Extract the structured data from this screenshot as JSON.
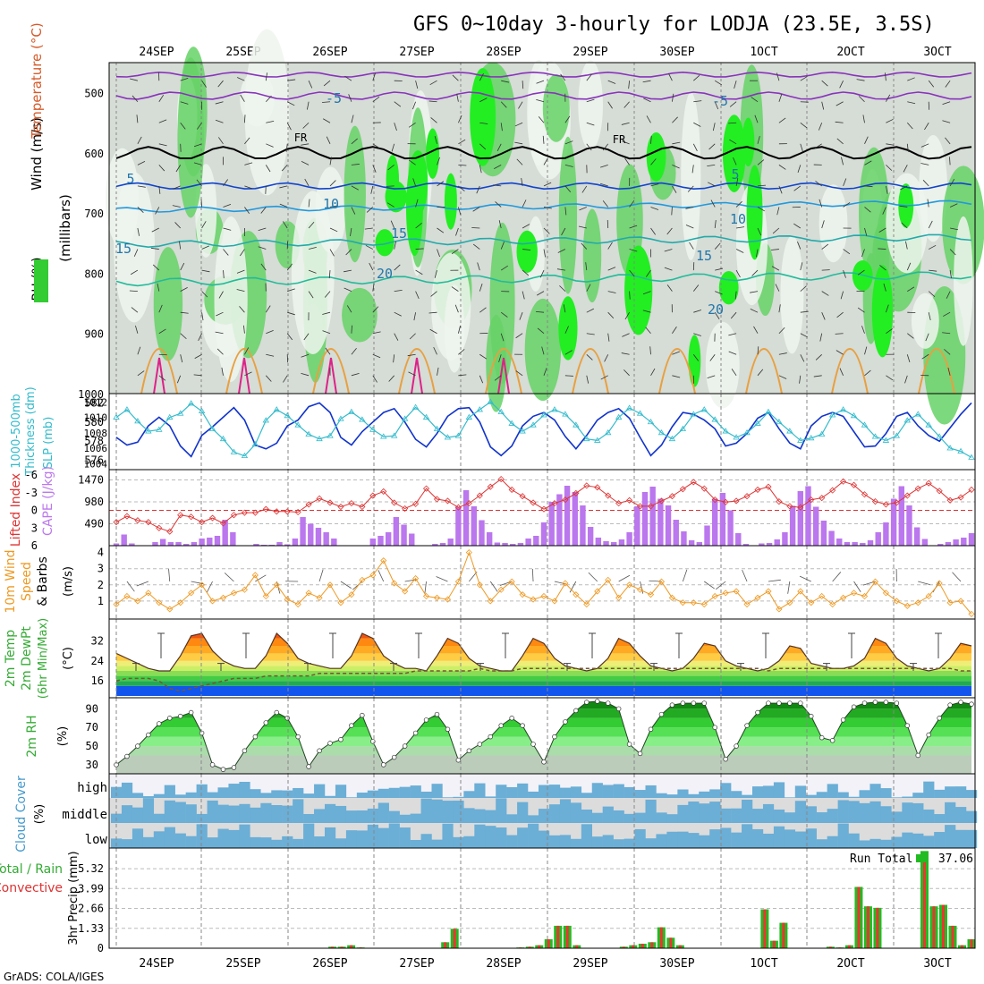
{
  "title": "GFS 0~10day 3-hourly for LODJA (23.5E, 3.5S)",
  "credit": "GrADS: COLA/IGES",
  "dates": [
    "24SEP",
    "25SEP",
    "26SEP",
    "27SEP",
    "28SEP",
    "29SEP",
    "30SEP",
    "1OCT",
    "2OCT",
    "3OCT"
  ],
  "panels": {
    "profile": {
      "labels": [
        "Wind (m/s)",
        "Temperature (°C)",
        "RH (%)",
        "(millibars)"
      ],
      "pressure_ticks": [
        500,
        600,
        700,
        800,
        900,
        1000
      ],
      "freezing_label": "FR",
      "isotherm_labels": [
        "-5",
        "5",
        "10",
        "15",
        "20"
      ]
    },
    "thickness": {
      "labels": [
        "1000-500mb",
        "Thickness (dm)",
        "SLP (mb)"
      ],
      "left_ticks": [
        576,
        578,
        580,
        582
      ],
      "right_ticks": [
        1004,
        1006,
        1008,
        1010,
        1012
      ]
    },
    "stability": {
      "labels": [
        "Lifted Index",
        "CAPE (J/kg)"
      ],
      "li_ticks": [
        "-6",
        "-3",
        "0",
        "3",
        "6"
      ],
      "cape_ticks": [
        490,
        980,
        1470
      ]
    },
    "wind10m": {
      "labels": [
        "10m Wind",
        "Speed",
        "& Barbs"
      ],
      "unit": "(m/s)",
      "ticks": [
        1,
        2,
        3,
        4
      ]
    },
    "temp2m": {
      "labels": [
        "2m Temp",
        "2m DewPt",
        "(6hr Min/Max)"
      ],
      "unit": "(°C)",
      "ticks": [
        16,
        24,
        32
      ]
    },
    "rh2m": {
      "label": "2m RH",
      "unit": "(%)",
      "ticks": [
        30,
        50,
        70,
        90
      ]
    },
    "cloud": {
      "label": "Cloud Cover",
      "unit": "(%)",
      "levels": [
        "high",
        "middle",
        "low"
      ]
    },
    "precip": {
      "labels": [
        "Total / Rain",
        "Convective"
      ],
      "unit": "3hr Precip (mm)",
      "ticks": [
        "0",
        "1.33",
        "2.66",
        "3.99",
        "5.32"
      ],
      "run_total_label": "Run Total",
      "run_total_value": "37.06"
    }
  },
  "colors": {
    "grid": "#999999",
    "total": "#22bb22",
    "convective": "#ee3333",
    "cape": "#bb77ee",
    "li": "#dd3333",
    "thick": "#1133cc",
    "slp": "#33bbcc",
    "wind": "#ee9922"
  },
  "chart_data": [
    {
      "type": "line",
      "title": "1000-500mb Thickness (dm) / SLP (mb)",
      "series": [
        {
          "name": "Thickness (dm)",
          "values": [
            578.4,
            577.6,
            577.9,
            579.6,
            580.5,
            579.6,
            577.5,
            576.4,
            578.6,
            579.5,
            580.5,
            581.5,
            580.2,
            577.6,
            577.2,
            577.8,
            579.6,
            580.2,
            581.6,
            582.0,
            581.0,
            578.4,
            577.6,
            579.0,
            580.0,
            581.0,
            581.4,
            580.0,
            578.2,
            577.4,
            578.8,
            580.6,
            581.4,
            581.5,
            580.0,
            577.4,
            576.5,
            577.5,
            579.6,
            580.6,
            581.0,
            580.2,
            578.5,
            577.2,
            578.6,
            580.2,
            581.0,
            581.4,
            580.4,
            578.4,
            576.5,
            577.6,
            579.5,
            581.0,
            580.8,
            580.2,
            579.3,
            577.5,
            577.8,
            578.8,
            580.4,
            581.0,
            579.3,
            577.8,
            577.2,
            579.6,
            580.6,
            581.0,
            580.6,
            579.0,
            577.4,
            577.5,
            578.8,
            580.6,
            581.0,
            579.6,
            578.6,
            578.0,
            579.4,
            580.8,
            582.0
          ]
        },
        {
          "name": "SLP (mb)",
          "values": [
            1010.0,
            1011.0,
            1009.5,
            1008.2,
            1008.4,
            1010.0,
            1010.5,
            1011.8,
            1010.8,
            1008.5,
            1007.2,
            1005.5,
            1005.0,
            1006.5,
            1009.6,
            1011.0,
            1010.2,
            1009.0,
            1007.8,
            1007.2,
            1007.6,
            1009.8,
            1010.7,
            1009.7,
            1008.4,
            1007.5,
            1007.6,
            1009.8,
            1011.3,
            1010.0,
            1008.5,
            1007.4,
            1007.6,
            1010.0,
            1011.0,
            1012.0,
            1010.7,
            1009.2,
            1008.2,
            1009.0,
            1010.3,
            1011.0,
            1010.4,
            1009.0,
            1007.2,
            1007.0,
            1008.0,
            1010.0,
            1011.2,
            1010.5,
            1009.4,
            1008.0,
            1007.2,
            1008.5,
            1010.4,
            1011.0,
            1009.7,
            1008.2,
            1007.4,
            1008.0,
            1009.2,
            1010.7,
            1009.4,
            1008.2,
            1007.0,
            1007.3,
            1007.8,
            1010.3,
            1011.0,
            1010.2,
            1009.0,
            1007.5,
            1007.0,
            1007.6,
            1009.6,
            1010.4,
            1009.0,
            1007.5,
            1006.0,
            1005.6,
            1004.8
          ]
        }
      ]
    },
    {
      "type": "bar",
      "title": "CAPE (J/kg) / Lifted Index",
      "series": [
        {
          "name": "CAPE (J/kg)",
          "values": [
            50,
            250,
            50,
            0,
            0,
            80,
            150,
            80,
            80,
            40,
            80,
            160,
            180,
            220,
            580,
            300,
            0,
            0,
            40,
            20,
            20,
            80,
            30,
            160,
            640,
            490,
            400,
            300,
            160,
            0,
            0,
            0,
            0,
            160,
            220,
            300,
            640,
            470,
            270,
            0,
            0,
            40,
            60,
            160,
            870,
            1240,
            880,
            570,
            300,
            70,
            60,
            40,
            60,
            160,
            220,
            520,
            980,
            1150,
            1340,
            1200,
            900,
            420,
            180,
            100,
            80,
            140,
            300,
            880,
            1200,
            1320,
            1050,
            900,
            580,
            320,
            120,
            80,
            450,
            1050,
            1180,
            790,
            280,
            40,
            0,
            50,
            60,
            140,
            300,
            890,
            1220,
            1330,
            870,
            560,
            330,
            160,
            80,
            80,
            60,
            120,
            300,
            520,
            1050,
            1330,
            900,
            410,
            150,
            0,
            40,
            80,
            140,
            180,
            280
          ]
        },
        {
          "name": "Lifted Index",
          "values": [
            2.0,
            1.0,
            1.7,
            2.0,
            3.0,
            3.6,
            0.8,
            1.1,
            2.0,
            1.3,
            2.2,
            0.8,
            0.4,
            0.4,
            -0.2,
            0.2,
            0.2,
            0.3,
            -1.0,
            -2.0,
            -1.3,
            -0.6,
            -1.2,
            -0.6,
            -2.5,
            -3.2,
            -1.3,
            -0.3,
            -1.1,
            -3.7,
            -1.9,
            -1.6,
            -0.5,
            -1.2,
            -2.5,
            -4.0,
            -5.3,
            -3.5,
            -2.4,
            -1.3,
            -0.2,
            -1.2,
            -1.8,
            -2.9,
            -4.2,
            -3.9,
            -2.5,
            -1.2,
            -1.7,
            -0.7,
            -0.7,
            -1.6,
            -2.4,
            -3.6,
            -4.8,
            -3.7,
            -1.8,
            -1.4,
            -1.6,
            -2.4,
            -3.5,
            -4.0,
            -1.5,
            -0.7,
            -0.5,
            -1.8,
            -2.1,
            -3.4,
            -4.9,
            -4.3,
            -2.7,
            -1.5,
            -1.0,
            -1.3,
            -2.5,
            -3.7,
            -4.6,
            -3.3,
            -1.7,
            -2.2,
            -3.5
          ]
        }
      ]
    },
    {
      "type": "line",
      "title": "10m Wind Speed (m/s)",
      "series": [
        {
          "name": "Speed",
          "values": [
            0.8,
            1.3,
            1.0,
            1.5,
            0.9,
            0.5,
            0.9,
            1.5,
            2.0,
            1.0,
            1.2,
            1.5,
            1.7,
            2.6,
            1.3,
            2.0,
            1.1,
            0.8,
            1.5,
            1.2,
            2.0,
            0.9,
            1.4,
            2.3,
            2.6,
            3.5,
            2.1,
            1.6,
            2.4,
            1.3,
            1.2,
            1.1,
            2.2,
            4.0,
            2.0,
            1.0,
            1.7,
            2.2,
            1.4,
            1.1,
            1.3,
            1.0,
            2.1,
            1.4,
            0.8,
            1.6,
            2.3,
            1.2,
            2.0,
            1.7,
            1.4,
            2.2,
            1.2,
            0.9,
            0.9,
            0.8,
            1.3,
            1.5,
            1.6,
            0.8,
            1.2,
            1.6,
            0.5,
            0.9,
            1.6,
            0.9,
            1.3,
            0.8,
            1.2,
            1.5,
            1.3,
            2.2,
            1.5,
            1.0,
            0.7,
            0.9,
            1.3,
            2.1,
            0.9,
            1.0,
            0.2
          ]
        }
      ]
    },
    {
      "type": "line",
      "title": "2m Temp / 2m DewPt",
      "series": [
        {
          "name": "2m Temp",
          "values": [
            27,
            25,
            23,
            21,
            20,
            20,
            26,
            34,
            35,
            28,
            24,
            22,
            21,
            21,
            26,
            35,
            31,
            25,
            23,
            22,
            21,
            21,
            26,
            35,
            33,
            26,
            23,
            21,
            21,
            20,
            26,
            33,
            31,
            25,
            22,
            21,
            20,
            20,
            26,
            33,
            31,
            25,
            22,
            21,
            20,
            21,
            25,
            33,
            31,
            26,
            22,
            21,
            20,
            21,
            25,
            31,
            30,
            24,
            22,
            21,
            20,
            21,
            24,
            30,
            29,
            23,
            22,
            21,
            21,
            22,
            25,
            33,
            31,
            25,
            22,
            21,
            20,
            21,
            25,
            31,
            30
          ]
        },
        {
          "name": "2m DewPt",
          "values": [
            16,
            17,
            17,
            17,
            16,
            13,
            12,
            13,
            14,
            15,
            16,
            17,
            17,
            17,
            18,
            18,
            18,
            18,
            18,
            19,
            19,
            19,
            19,
            19,
            19,
            19,
            19,
            19,
            20,
            20,
            20,
            20,
            20,
            20,
            21,
            20,
            20,
            20,
            21,
            21,
            21,
            21,
            21,
            21,
            21,
            21,
            21,
            21,
            21,
            21,
            21,
            21,
            21,
            21,
            21,
            21,
            21,
            21,
            21,
            21,
            21,
            20,
            21,
            21,
            21,
            21,
            21,
            21,
            21,
            21,
            21,
            21,
            21,
            21,
            21,
            21,
            21,
            21,
            21,
            20,
            20
          ]
        }
      ]
    },
    {
      "type": "area",
      "title": "2m RH (%)",
      "series": [
        {
          "name": "2m RH",
          "values": [
            30,
            39,
            50,
            62,
            74,
            80,
            82,
            86,
            64,
            30,
            25,
            27,
            45,
            60,
            75,
            86,
            80,
            60,
            28,
            45,
            53,
            57,
            72,
            83,
            55,
            30,
            38,
            50,
            64,
            78,
            84,
            68,
            35,
            45,
            52,
            60,
            72,
            80,
            72,
            52,
            33,
            60,
            76,
            88,
            97,
            98,
            96,
            90,
            52,
            42,
            68,
            84,
            94,
            96,
            96,
            96,
            70,
            36,
            50,
            72,
            86,
            96,
            96,
            96,
            96,
            82,
            59,
            56,
            78,
            92,
            96,
            97,
            97,
            96,
            72,
            40,
            62,
            80,
            94,
            97,
            95
          ]
        }
      ]
    },
    {
      "type": "bar",
      "title": "3hr Precip (mm)",
      "series": [
        {
          "name": "Total / Rain",
          "values": [
            0,
            0,
            0,
            0,
            0,
            0,
            0,
            0,
            0,
            0,
            0,
            0,
            0,
            0,
            0,
            0,
            0,
            0,
            0,
            0,
            0,
            0,
            0,
            0.1,
            0.1,
            0.2,
            0.05,
            0,
            0,
            0,
            0,
            0,
            0,
            0,
            0,
            0.4,
            1.3,
            0,
            0,
            0,
            0,
            0,
            0,
            0.05,
            0.1,
            0.2,
            0.6,
            1.5,
            1.5,
            0.2,
            0,
            0,
            0,
            0,
            0.1,
            0.2,
            0.3,
            0.4,
            1.4,
            0.7,
            0.2,
            0,
            0,
            0,
            0,
            0,
            0,
            0,
            0,
            2.6,
            0.5,
            1.7,
            0,
            0,
            0,
            0,
            0.1,
            0.05,
            0.2,
            4.1,
            2.8,
            2.7,
            0,
            0,
            0,
            0,
            6.5,
            2.8,
            2.9,
            1.5,
            0.2,
            0.6
          ]
        },
        {
          "name": "Convective",
          "values": [
            0,
            0,
            0,
            0,
            0,
            0,
            0,
            0,
            0,
            0,
            0,
            0,
            0,
            0,
            0,
            0,
            0,
            0,
            0,
            0,
            0,
            0,
            0,
            0.1,
            0.1,
            0.2,
            0.05,
            0,
            0,
            0,
            0,
            0,
            0,
            0,
            0,
            0.4,
            1.3,
            0,
            0,
            0,
            0,
            0,
            0,
            0.05,
            0.1,
            0.2,
            0.6,
            1.5,
            1.5,
            0.2,
            0,
            0,
            0,
            0,
            0.1,
            0.2,
            0.3,
            0.4,
            1.4,
            0.7,
            0.2,
            0,
            0,
            0,
            0,
            0,
            0,
            0,
            0,
            2.6,
            0.5,
            1.7,
            0,
            0,
            0,
            0,
            0.1,
            0.05,
            0.2,
            4.1,
            2.8,
            2.7,
            0,
            0,
            0,
            0,
            6.2,
            2.8,
            2.9,
            1.5,
            0.2,
            0.6
          ]
        }
      ]
    }
  ]
}
